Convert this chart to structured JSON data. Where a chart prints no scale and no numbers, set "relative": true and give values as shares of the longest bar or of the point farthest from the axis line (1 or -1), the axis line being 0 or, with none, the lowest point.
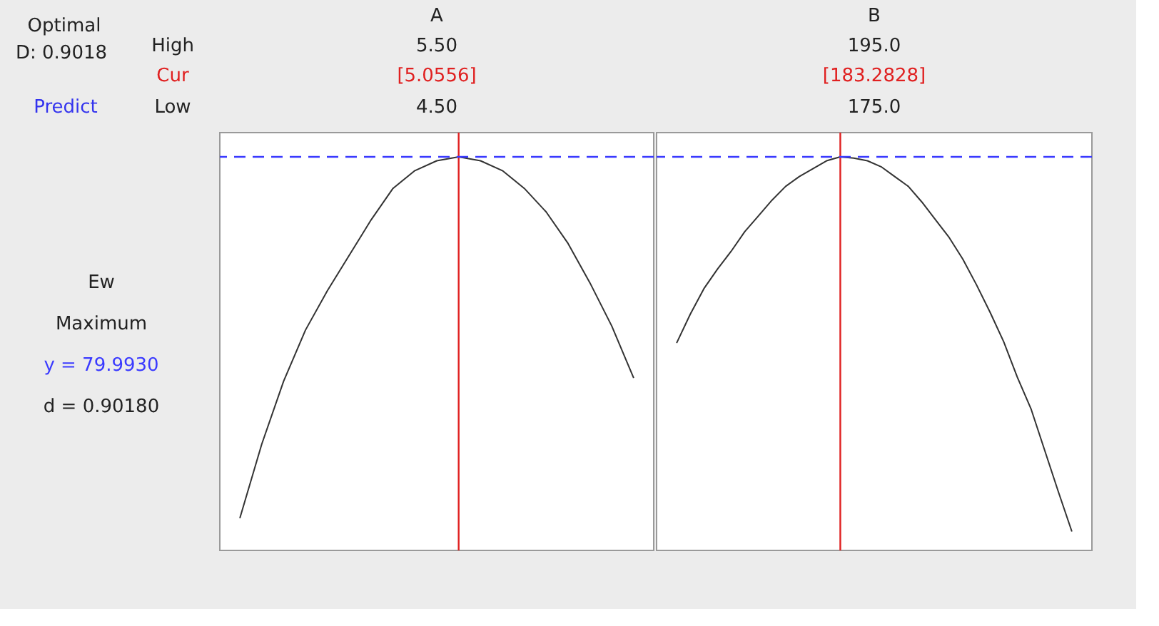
{
  "chart_data": [
    {
      "type": "line",
      "title": "A",
      "relative": true,
      "categories": [
        null,
        null,
        null,
        null,
        null,
        null,
        null,
        null,
        null,
        null,
        null,
        null,
        null,
        null,
        null,
        null,
        null,
        null,
        null
      ],
      "series": [
        {
          "color": "#333333",
          "values": [
            0.082,
            0.27,
            0.43,
            0.56,
            0.66,
            0.75,
            0.84,
            0.92,
            0.965,
            0.99,
            1,
            0.99,
            0.965,
            0.92,
            0.86,
            0.78,
            0.68,
            0.57,
            0.438
          ]
        }
      ],
      "ref_lines": [
        {
          "axis": "y",
          "value": 1,
          "color": "#3a3aff",
          "line_style": "dashed"
        }
      ],
      "annotations": [
        "5.50",
        "[5.0556]",
        "4.50",
        "Optimal",
        "D: 0.9018",
        "Predict",
        "High",
        "Cur",
        "Low",
        "Ew",
        "Maximum",
        "y = 79.9930",
        "d = 0.90180"
      ]
    },
    {
      "type": "line",
      "title": "B",
      "relative": true,
      "categories": [
        null,
        null,
        null,
        null,
        null,
        null,
        null,
        null,
        null,
        null,
        null,
        null,
        null,
        null,
        null,
        null,
        null,
        null,
        null,
        null,
        null,
        null,
        null,
        null,
        null,
        null,
        null,
        null,
        null,
        null
      ],
      "series": [
        {
          "color": "#333333",
          "values": [
            0.527,
            0.6,
            0.665,
            0.715,
            0.76,
            0.81,
            0.85,
            0.89,
            0.925,
            0.95,
            0.97,
            0.99,
            1,
            0.997,
            0.99,
            0.975,
            0.95,
            0.925,
            0.885,
            0.84,
            0.795,
            0.74,
            0.675,
            0.605,
            0.53,
            0.44,
            0.36,
            0.255,
            0.15,
            0.048
          ]
        }
      ],
      "ref_lines": [
        {
          "axis": "y",
          "value": 1,
          "color": "#3a3aff",
          "line_style": "dashed"
        }
      ],
      "annotations": [
        "195.0",
        "[183.2828]",
        "175.0"
      ]
    }
  ]
}
